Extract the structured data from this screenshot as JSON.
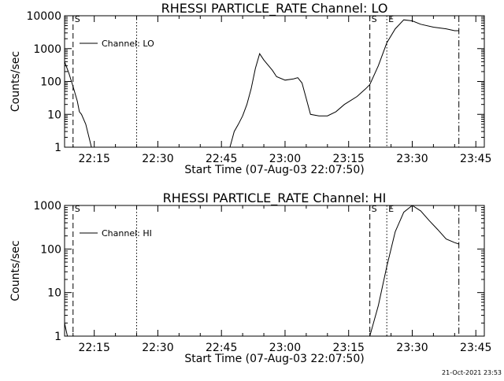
{
  "footer": {
    "date": "21-Oct-2021 23:53"
  },
  "colors": {
    "background": "#ffffff",
    "foreground": "#000000"
  },
  "chart_data": [
    {
      "type": "line",
      "title": "RHESSI PARTICLE_RATE Channel: LO",
      "xlabel": "Start Time (07-Aug-03 22:07:50)",
      "ylabel": "Counts/sec",
      "yscale": "log",
      "xlim": [
        "22:08",
        "23:47"
      ],
      "ylim": [
        1,
        10000
      ],
      "xticks": [
        "22:15",
        "22:30",
        "22:45",
        "23:00",
        "23:15",
        "23:30",
        "23:45"
      ],
      "yticks": [
        "1",
        "10",
        "100",
        "1000",
        "10000"
      ],
      "legend": {
        "position": "top-left",
        "entries": [
          "Channel: LO"
        ]
      },
      "markers": [
        {
          "time": "22:10",
          "style": "dashed",
          "label": "S"
        },
        {
          "time": "22:25",
          "style": "dotted",
          "label": ""
        },
        {
          "time": "23:20",
          "style": "dashed",
          "label": "S"
        },
        {
          "time": "23:24",
          "style": "dotted",
          "label": "E"
        },
        {
          "time": "23:41",
          "style": "dash-dot",
          "label": ""
        }
      ],
      "series": [
        {
          "name": "Channel: LO",
          "segments": [
            [
              [
                "22:08",
                400
              ],
              [
                "22:09",
                180
              ],
              [
                "22:10",
                70
              ],
              [
                "22:11",
                25
              ],
              [
                "22:11:30",
                12
              ],
              [
                "22:12",
                10
              ],
              [
                "22:13",
                5
              ],
              [
                "22:14",
                1.5
              ],
              [
                "22:14:20",
                1
              ]
            ],
            [
              [
                "22:47",
                1
              ],
              [
                "22:48",
                3
              ],
              [
                "22:49",
                5
              ],
              [
                "22:50",
                9
              ],
              [
                "22:51",
                20
              ],
              [
                "22:52",
                60
              ],
              [
                "22:53",
                250
              ],
              [
                "22:54",
                700
              ],
              [
                "22:55",
                450
              ],
              [
                "22:57",
                220
              ],
              [
                "22:58",
                140
              ],
              [
                "23:00",
                110
              ],
              [
                "23:02",
                120
              ],
              [
                "23:03",
                130
              ],
              [
                "23:04",
                90
              ],
              [
                "23:05",
                30
              ],
              [
                "23:06",
                10
              ],
              [
                "23:08",
                9
              ],
              [
                "23:10",
                9
              ],
              [
                "23:12",
                12
              ],
              [
                "23:14",
                20
              ],
              [
                "23:17",
                35
              ],
              [
                "23:19",
                60
              ],
              [
                "23:20",
                80
              ],
              [
                "23:22",
                300
              ],
              [
                "23:24",
                1500
              ],
              [
                "23:26",
                4000
              ],
              [
                "23:28",
                7500
              ],
              [
                "23:30",
                7000
              ],
              [
                "23:32",
                5500
              ],
              [
                "23:35",
                4500
              ],
              [
                "23:38",
                4000
              ],
              [
                "23:40",
                3500
              ],
              [
                "23:41",
                3500
              ]
            ]
          ]
        }
      ]
    },
    {
      "type": "line",
      "title": "RHESSI PARTICLE_RATE Channel: HI",
      "xlabel": "Start Time (07-Aug-03 22:07:50)",
      "ylabel": "Counts/sec",
      "yscale": "log",
      "xlim": [
        "22:08",
        "23:47"
      ],
      "ylim": [
        1,
        1000
      ],
      "xticks": [
        "22:15",
        "22:30",
        "22:45",
        "23:00",
        "23:15",
        "23:30",
        "23:45"
      ],
      "yticks": [
        "1",
        "10",
        "100",
        "1000"
      ],
      "legend": {
        "position": "top-left",
        "entries": [
          "Channel: HI"
        ]
      },
      "markers": [
        {
          "time": "22:10",
          "style": "dashed",
          "label": "S"
        },
        {
          "time": "22:25",
          "style": "dotted",
          "label": ""
        },
        {
          "time": "23:20",
          "style": "dashed",
          "label": "S"
        },
        {
          "time": "23:24",
          "style": "dotted",
          "label": "E"
        },
        {
          "time": "23:41",
          "style": "dash-dot",
          "label": ""
        }
      ],
      "series": [
        {
          "name": "Channel: HI",
          "segments": [
            [
              [
                "22:08",
                2
              ],
              [
                "22:08:20",
                1.4
              ],
              [
                "22:08:40",
                1
              ]
            ],
            [
              [
                "23:20",
                1
              ],
              [
                "23:22",
                5
              ],
              [
                "23:24",
                40
              ],
              [
                "23:26",
                250
              ],
              [
                "23:28",
                700
              ],
              [
                "23:30",
                1000
              ],
              [
                "23:32",
                750
              ],
              [
                "23:34",
                450
              ],
              [
                "23:36",
                280
              ],
              [
                "23:38",
                170
              ],
              [
                "23:40",
                140
              ],
              [
                "23:41",
                130
              ]
            ]
          ]
        }
      ]
    }
  ]
}
